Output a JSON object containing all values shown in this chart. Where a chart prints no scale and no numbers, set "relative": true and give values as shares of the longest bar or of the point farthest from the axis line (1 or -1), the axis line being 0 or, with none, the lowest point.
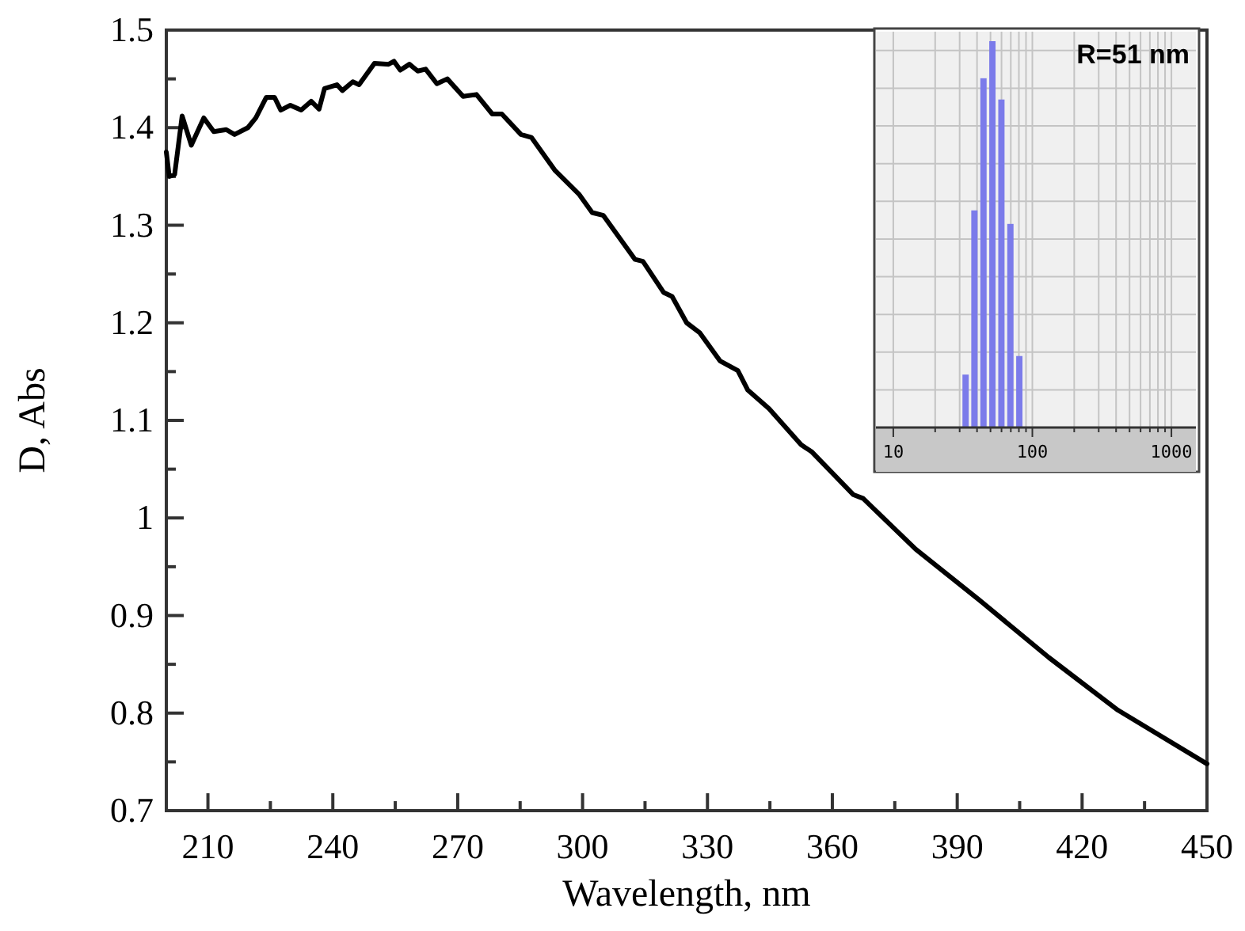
{
  "chart_data": [
    {
      "type": "line",
      "xlabel": "Wavelength, nm",
      "ylabel": "D, Abs",
      "xlim": [
        200,
        450
      ],
      "ylim": [
        0.7,
        1.5
      ],
      "xticks": [
        210,
        {
          "value": 225,
          "label": null
        },
        240,
        {
          "value": 255,
          "label": null
        },
        270,
        {
          "value": 285,
          "label": null
        },
        300,
        {
          "value": 315,
          "label": null
        },
        330,
        {
          "value": 345,
          "label": null
        },
        360,
        {
          "value": 375,
          "label": null
        },
        390,
        {
          "value": 405,
          "label": null
        },
        420,
        {
          "value": 435,
          "label": null
        },
        450
      ],
      "yticks": [
        0.7,
        {
          "value": 0.75,
          "label": null
        },
        0.8,
        {
          "value": 0.85,
          "label": null
        },
        0.9,
        {
          "value": 0.95,
          "label": null
        },
        1,
        {
          "value": 1.05,
          "label": null
        },
        1.1,
        {
          "value": 1.15,
          "label": null
        },
        1.2,
        {
          "value": 1.25,
          "label": null
        },
        1.3,
        {
          "value": 1.35,
          "label": null
        },
        1.4,
        {
          "value": 1.45,
          "label": null
        },
        1.5
      ],
      "series": [
        {
          "color": "#000000",
          "x": [
            200,
            200.7,
            202,
            203.8,
            206,
            209,
            211.4,
            214.4,
            216.4,
            219.6,
            221.5,
            224,
            226,
            227.5,
            229.8,
            232.4,
            234.8,
            236.7,
            238,
            241,
            242.3,
            244.8,
            246.3,
            250,
            253.4,
            254.7,
            256.2,
            258.4,
            260.4,
            262.3,
            265,
            267.5,
            271.3,
            274.5,
            278.3,
            280.6,
            285.2,
            287.7,
            293.4,
            299.1,
            302.3,
            305,
            312.6,
            314.5,
            319.5,
            321.5,
            325,
            328.1,
            333,
            337.3,
            339.7,
            344.8,
            352.5,
            355,
            365,
            367.4,
            380,
            395,
            412,
            428.6,
            450
          ],
          "values": [
            1.375,
            1.35,
            1.352,
            1.412,
            1.382,
            1.41,
            1.396,
            1.398,
            1.393,
            1.4,
            1.41,
            1.431,
            1.431,
            1.418,
            1.423,
            1.418,
            1.427,
            1.419,
            1.44,
            1.444,
            1.438,
            1.447,
            1.444,
            1.466,
            1.465,
            1.468,
            1.459,
            1.465,
            1.458,
            1.46,
            1.445,
            1.45,
            1.432,
            1.434,
            1.414,
            1.414,
            1.393,
            1.39,
            1.356,
            1.332,
            1.313,
            1.31,
            1.265,
            1.263,
            1.231,
            1.227,
            1.2,
            1.19,
            1.161,
            1.151,
            1.131,
            1.112,
            1.075,
            1.068,
            1.024,
            1.02,
            0.968,
            0.917,
            0.857,
            0.803,
            0.748
          ]
        }
      ]
    },
    {
      "type": "bar",
      "relative": true,
      "log": "x",
      "grid": true,
      "tick_labels": "x",
      "annotations": [
        "R=51 nm"
      ],
      "xlim": [
        7.5,
        1500
      ],
      "xticks": [
        10,
        {
          "value": 20,
          "label": null
        },
        {
          "value": 30,
          "label": null
        },
        {
          "value": 40,
          "label": null
        },
        {
          "value": 50,
          "label": null
        },
        {
          "value": 60,
          "label": null
        },
        {
          "value": 70,
          "label": null
        },
        {
          "value": 80,
          "label": null
        },
        {
          "value": 90,
          "label": null
        },
        100,
        {
          "value": 200,
          "label": null
        },
        {
          "value": 300,
          "label": null
        },
        {
          "value": 400,
          "label": null
        },
        {
          "value": 500,
          "label": null
        },
        {
          "value": 600,
          "label": null
        },
        {
          "value": 700,
          "label": null
        },
        {
          "value": 800,
          "label": null
        },
        {
          "value": 900,
          "label": null
        },
        1000
      ],
      "x": [
        33.1,
        38.3,
        44.5,
        51.6,
        59.9,
        69.5,
        80.6
      ],
      "values": [
        0.137,
        0.562,
        0.904,
        1,
        0.849,
        0.527,
        0.185
      ],
      "color": "#7b7bea"
    }
  ]
}
